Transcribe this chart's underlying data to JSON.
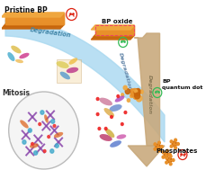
{
  "background_color": "#ffffff",
  "labels": {
    "pristine_bp": "Pristine BP",
    "bp_oxide": "BP oxide",
    "bp_quantum_dot": "BP\nquantum dot",
    "phosphates": "Phosphates",
    "mitosis": "Mitosis",
    "degradation1": "Degradation",
    "degradation2": "Degradation",
    "degradation3": "Degradation"
  },
  "colors": {
    "bp_orange": "#C8650A",
    "bp_orange_light": "#E8902A",
    "bp_orange_top": "#F0A840",
    "arrow_blue": "#A8D8F0",
    "arrow_brown": "#C8A87A",
    "arrow_brown_dark": "#A08858",
    "mitosis_circle_fill": "#F5F5F5",
    "mitosis_circle_edge": "#BBBBBB",
    "green_face": "#33BB55",
    "red_face": "#DD2211",
    "bp_oxide_dashed": "#EE4466"
  },
  "figsize": [
    2.3,
    1.89
  ],
  "dpi": 100
}
